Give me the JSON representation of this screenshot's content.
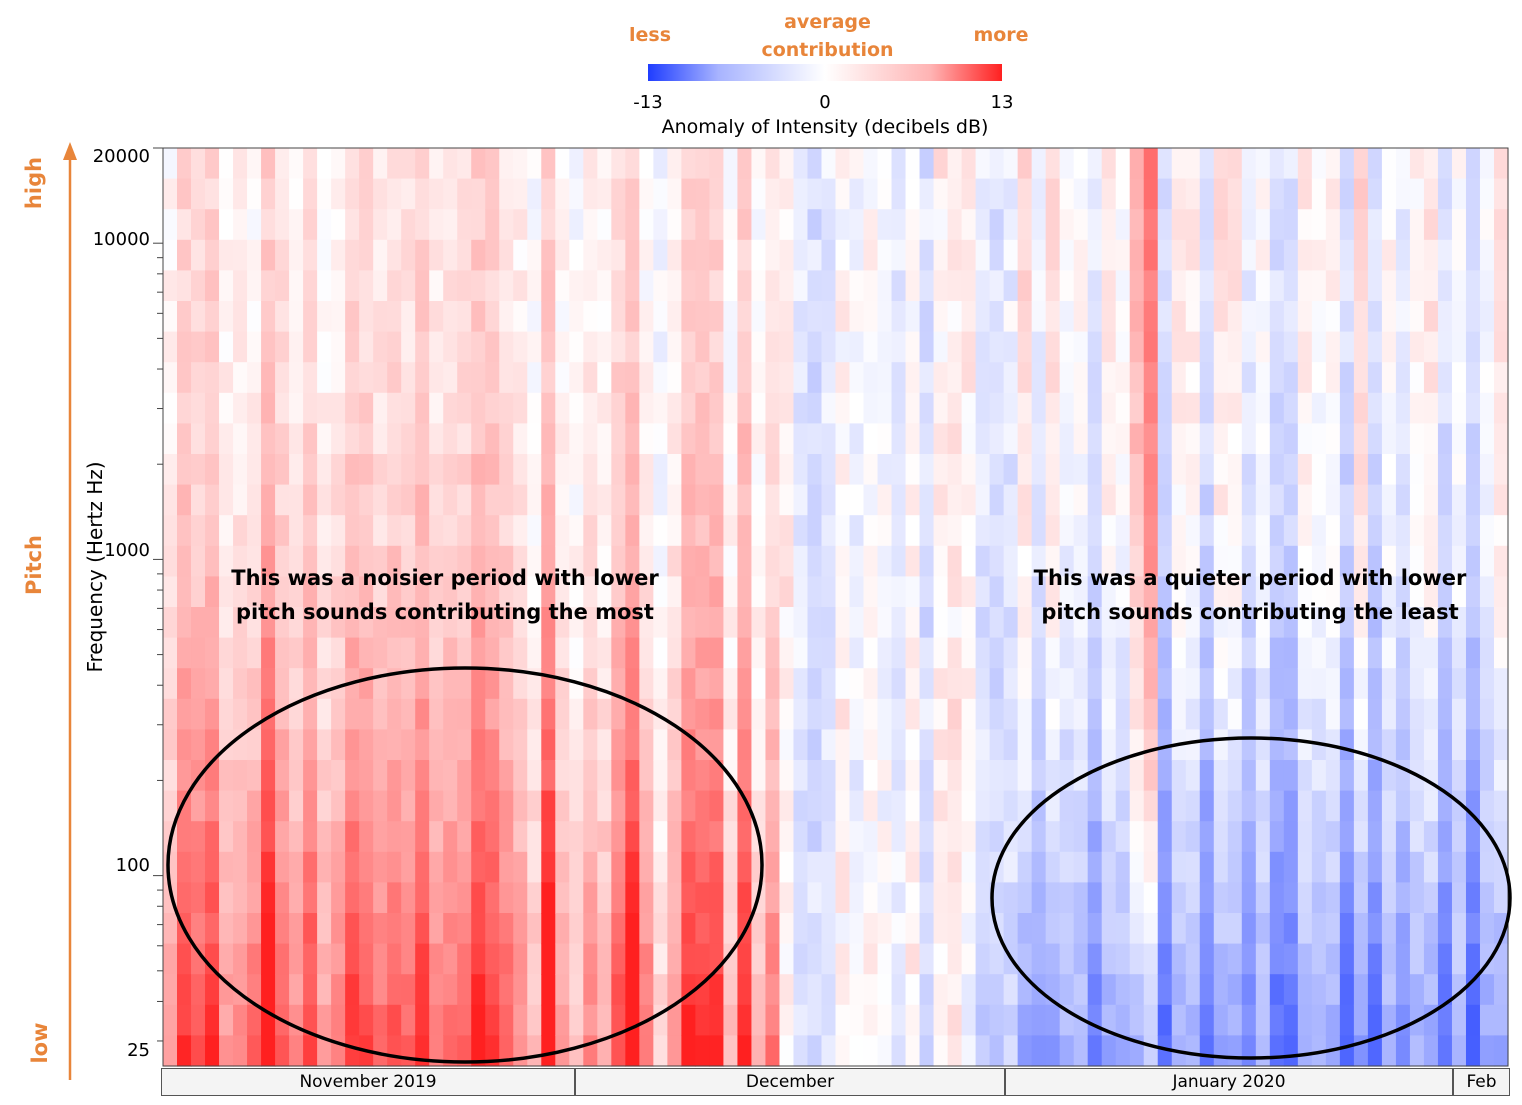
{
  "legend": {
    "less_label": "less",
    "average_label_line1": "average",
    "average_label_line2": "contribution",
    "more_label": "more",
    "min_label": "-13",
    "mid_label": "0",
    "max_label": "13",
    "title": "Anomaly of Intensity (decibels dB)",
    "colors": {
      "negative": "#1f3dff",
      "neutral": "#ffffff",
      "positive": "#ff2020"
    }
  },
  "side_labels": {
    "high": "high",
    "pitch": "Pitch",
    "low": "low",
    "color": "#E8853A"
  },
  "annotations": {
    "noisy_line1": "This was a noisier period with lower",
    "noisy_line2": "pitch sounds contributing the most",
    "quiet_line1": "This was a quieter period with lower",
    "quiet_line2": "pitch sounds contributing the least"
  },
  "chart_data": {
    "type": "heatmap",
    "title": "",
    "xlabel": "",
    "ylabel": "Frequency (Hertz Hz)",
    "y_scale": "log",
    "ylim": [
      25,
      20000
    ],
    "y_ticks": [
      {
        "value": 25,
        "label": "25"
      },
      {
        "value": 100,
        "label": "100"
      },
      {
        "value": 1000,
        "label": "1000"
      },
      {
        "value": 10000,
        "label": "10000"
      },
      {
        "value": 20000,
        "label": "20000"
      }
    ],
    "x_groups": [
      {
        "label": "November 2019",
        "days": 30
      },
      {
        "label": "December",
        "days": 31
      },
      {
        "label": "January 2020",
        "days": 31
      },
      {
        "label": "Feb",
        "days": 4
      }
    ],
    "colorbar": {
      "min": -13,
      "max": 13,
      "label": "Anomaly of Intensity (decibels dB)"
    },
    "pattern_summary": "November: positive anomalies concentrated at low frequencies; January: negative anomalies concentrated at low frequencies; December near zero"
  }
}
